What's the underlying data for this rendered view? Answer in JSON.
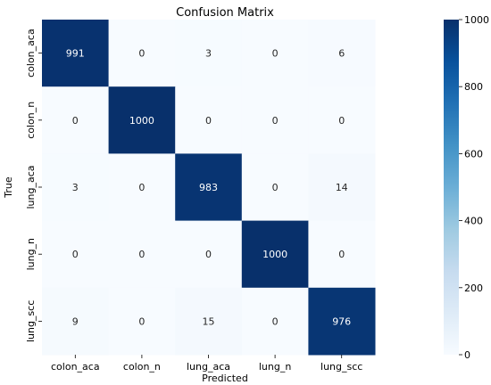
{
  "chart_data": {
    "type": "heatmap",
    "title": "Confusion Matrix",
    "xlabel": "Predicted",
    "ylabel": "True",
    "x_categories": [
      "colon_aca",
      "colon_n",
      "lung_aca",
      "lung_n",
      "lung_scc"
    ],
    "y_categories": [
      "colon_aca",
      "colon_n",
      "lung_aca",
      "lung_n",
      "lung_scc"
    ],
    "values": [
      [
        991,
        0,
        3,
        0,
        6
      ],
      [
        0,
        1000,
        0,
        0,
        0
      ],
      [
        3,
        0,
        983,
        0,
        14
      ],
      [
        0,
        0,
        0,
        1000,
        0
      ],
      [
        9,
        0,
        15,
        0,
        976
      ]
    ],
    "colorbar": {
      "min": 0,
      "max": 1000,
      "ticks": [
        "0",
        "200",
        "400",
        "600",
        "800",
        "1000"
      ],
      "colormap": "Blues"
    },
    "colors": {
      "low": "#f7fbff",
      "high": "#08306b"
    }
  }
}
